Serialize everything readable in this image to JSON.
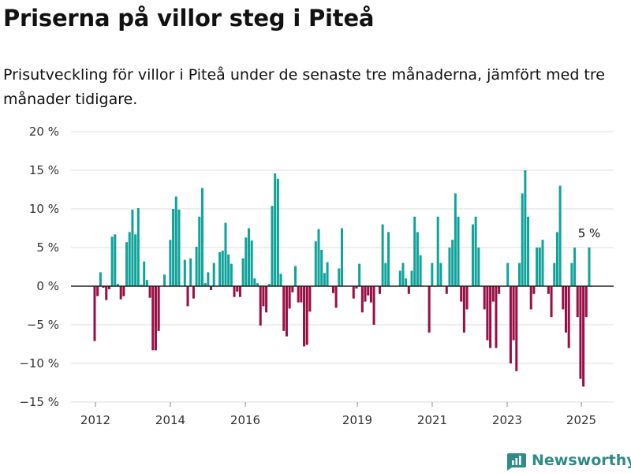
{
  "title": "Priserna på villor steg i Piteå",
  "subtitle": "Prisutveckling för villor i Piteå under de senaste tre månaderna, jämfört med tre månader tidigare.",
  "brand": {
    "name": "Newsworthy",
    "icon": "newsworthy-logo-icon",
    "color": "#2e8b86"
  },
  "colors": {
    "positive": "#0fa39a",
    "negative": "#990f45",
    "grid": "#dddddd",
    "zero_line": "#222222"
  },
  "chart_data": {
    "type": "bar",
    "title": "Priserna på villor steg i Piteå",
    "ylim": [
      -15,
      20
    ],
    "yticks": [
      20,
      15,
      10,
      5,
      0,
      -5,
      -10,
      -15
    ],
    "ytick_labels": [
      "20 %",
      "15 %",
      "10 %",
      "5 %",
      "0 %",
      "−5 %",
      "−10 %",
      "−15 %"
    ],
    "xticks": [
      "2012",
      "2014",
      "2016",
      "2019",
      "2021",
      "2023",
      "2025"
    ],
    "grid": true,
    "last_value_label": "5 %",
    "values": [
      -7.1,
      -1.3,
      1.8,
      -0.2,
      -1.8,
      -0.4,
      6.4,
      6.7,
      0.3,
      -1.7,
      -1.3,
      5.7,
      7.0,
      9.9,
      6.7,
      10.1,
      0.2,
      3.2,
      0.8,
      -1.5,
      -8.3,
      -8.3,
      -5.8,
      0.0,
      1.5,
      0.0,
      6.0,
      10.0,
      11.6,
      9.9,
      0.0,
      3.4,
      -2.6,
      3.6,
      -1.6,
      5.1,
      9.0,
      12.7,
      0.4,
      1.8,
      -0.5,
      3.0,
      0.0,
      4.4,
      4.6,
      8.2,
      4.1,
      2.9,
      -1.4,
      -0.7,
      -1.4,
      3.6,
      6.3,
      7.5,
      5.9,
      1.0,
      0.4,
      -5.1,
      -2.6,
      -3.4,
      0.3,
      10.4,
      14.6,
      13.9,
      1.6,
      -5.8,
      -6.5,
      -2.9,
      -0.8,
      2.6,
      -2.1,
      -2.1,
      -7.8,
      -7.6,
      -3.3,
      0.0,
      5.8,
      7.4,
      4.7,
      1.7,
      3.1,
      0.0,
      -0.9,
      -2.8,
      2.3,
      7.5,
      0.0,
      0.0,
      0.0,
      -1.6,
      -0.3,
      2.9,
      -3.4,
      -2.0,
      -1.2,
      -2.1,
      -5.0,
      0.0,
      -1.0,
      8.0,
      3.0,
      7.0,
      0.0,
      0.0,
      0.0,
      2.0,
      3.0,
      1.0,
      -1.0,
      2.0,
      9.0,
      7.0,
      4.0,
      0.0,
      0.0,
      -6.0,
      3.0,
      0.0,
      9.0,
      3.0,
      0.0,
      -1.0,
      5.0,
      6.0,
      12.0,
      9.0,
      -2.0,
      -6.0,
      -3.0,
      0.0,
      8.0,
      9.0,
      5.0,
      0.0,
      -3.0,
      -7.0,
      -8.0,
      -2.0,
      -8.0,
      -1.0,
      0.0,
      0.0,
      3.0,
      -10.0,
      -7.0,
      -11.0,
      3.0,
      12.0,
      15.0,
      9.0,
      -3.0,
      -1.0,
      5.0,
      5.0,
      6.0,
      0.0,
      -1.0,
      -4.0,
      3.0,
      7.0,
      13.0,
      -3.0,
      -6.0,
      -8.0,
      3.0,
      5.0,
      -4.0,
      -12.0,
      -13.0,
      -4.0,
      5.0
    ]
  }
}
